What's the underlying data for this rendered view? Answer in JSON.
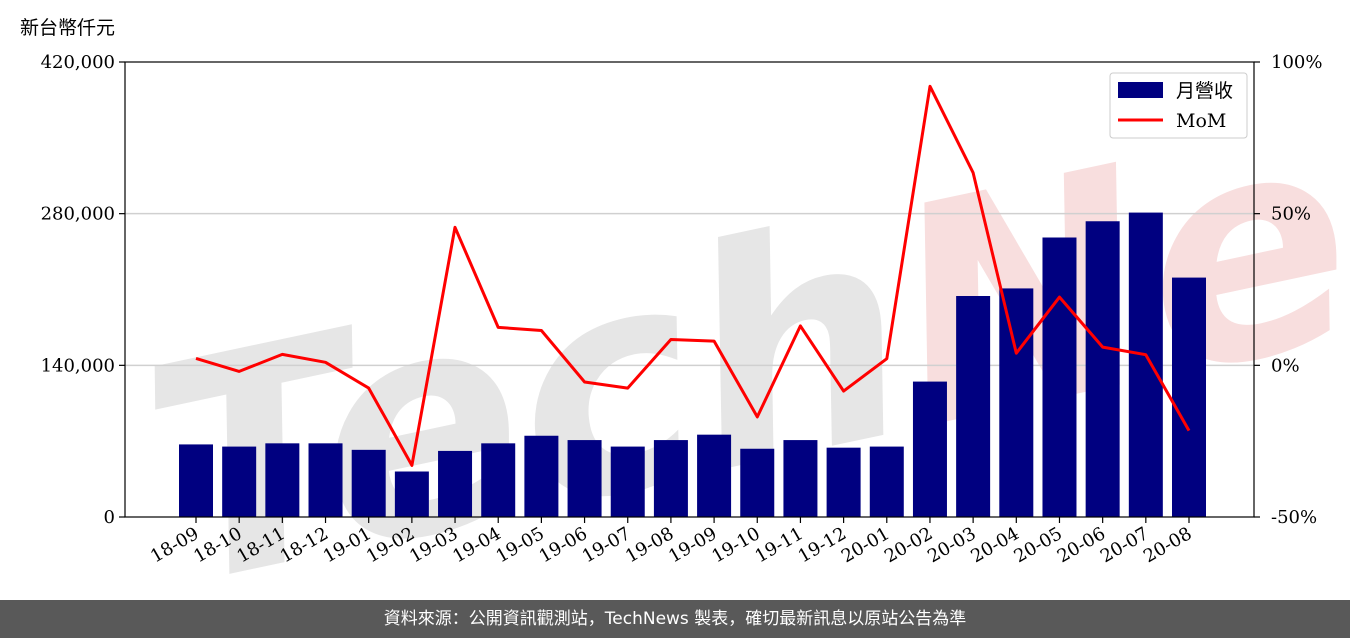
{
  "unit_label": "新台幣仟元",
  "footer_text": "資料來源：公開資訊觀測站，TechNews 製表，確切最新訊息以原站公告為準",
  "watermark": "TechNews",
  "colors": {
    "bar": "#000080",
    "line": "#ff0000",
    "grid": "#d0d0d0",
    "footer_bg": "#595959",
    "watermark_tech": "#e6e6e6",
    "watermark_news": "#f8dede"
  },
  "chart_data": {
    "type": "bar+line",
    "categories": [
      "18-09",
      "18-10",
      "18-11",
      "18-12",
      "19-01",
      "19-02",
      "19-03",
      "19-04",
      "19-05",
      "19-06",
      "19-07",
      "19-08",
      "19-09",
      "19-10",
      "19-11",
      "19-12",
      "20-01",
      "20-02",
      "20-03",
      "20-04",
      "20-05",
      "20-06",
      "20-07",
      "20-08"
    ],
    "series": [
      {
        "name": "月營收",
        "type": "bar",
        "axis": "left",
        "values": [
          67000,
          65000,
          68000,
          68000,
          62000,
          42000,
          61000,
          68000,
          75000,
          71000,
          65000,
          71000,
          76000,
          63000,
          71000,
          64000,
          65000,
          125000,
          204000,
          211000,
          258000,
          273000,
          281000,
          221000
        ]
      },
      {
        "name": "MoM",
        "type": "line",
        "axis": "right",
        "unit": "%",
        "values": [
          2.3,
          -2.0,
          3.6,
          1.0,
          -7.5,
          -33.0,
          45.5,
          12.5,
          11.5,
          -5.5,
          -7.5,
          8.5,
          8.0,
          -17.0,
          13.0,
          -8.5,
          2.2,
          92.0,
          63.5,
          4.0,
          22.5,
          6.0,
          3.5,
          -21.5
        ]
      }
    ],
    "left_axis": {
      "min": 0,
      "max": 420000,
      "ticks": [
        0,
        140000,
        280000,
        420000
      ],
      "tick_labels": [
        "0",
        "140,000",
        "280,000",
        "420,000"
      ]
    },
    "right_axis": {
      "min": -50,
      "max": 100,
      "ticks": [
        -50,
        0,
        50,
        100
      ],
      "tick_labels": [
        "-50%",
        "0%",
        "50%",
        "100%"
      ]
    },
    "grid": "horizontal",
    "legend_position": "top-right"
  }
}
